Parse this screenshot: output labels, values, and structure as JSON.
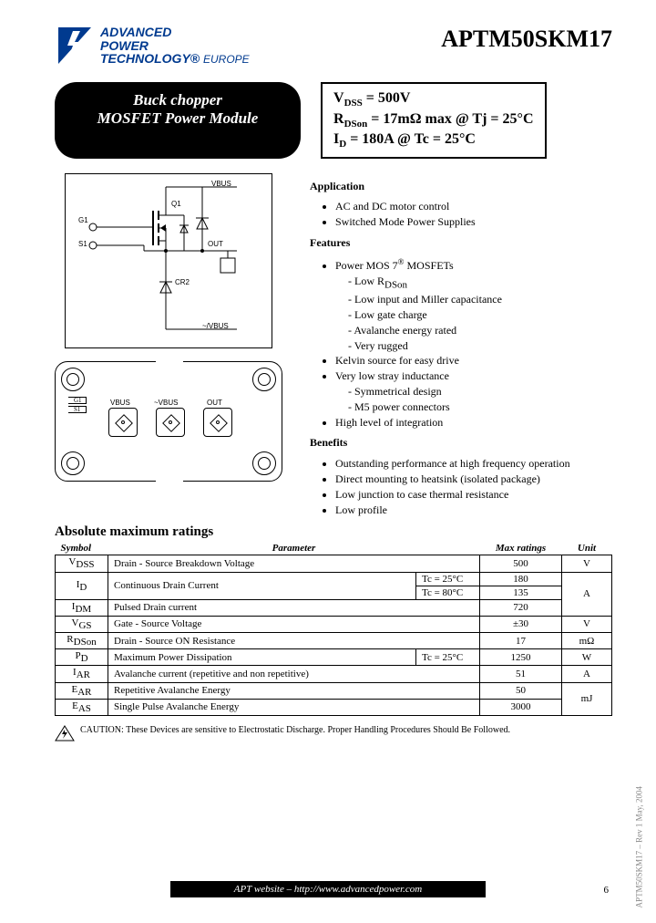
{
  "header": {
    "logo_lines": [
      "ADVANCED",
      "POWER",
      "TECHNOLOGY®"
    ],
    "logo_suffix": "EUROPE",
    "part_number": "APTM50SKM17"
  },
  "title_badge": {
    "line1": "Buck chopper",
    "line2": "MOSFET Power Module"
  },
  "spec_box": {
    "line1_html": "V<sub class='sub'>DSS</sub> = 500V",
    "line2_html": "R<sub class='sub'>DSon</sub> = 17mΩ max @ Tj = 25°C",
    "line3_html": "I<sub class='sub'>D</sub> = 180A @ Tc = 25°C"
  },
  "schematic_labels": {
    "vbus": "VBUS",
    "q1": "Q1",
    "g1": "G1",
    "s1": "S1",
    "out": "OUT",
    "cr2": "CR2",
    "nvbus": "~/VBUS"
  },
  "package_labels": {
    "g1": "G1",
    "s1": "S1",
    "vbus": "VBUS",
    "nvbus": "~VBUS",
    "out": "OUT"
  },
  "sections": {
    "application": {
      "title": "Application",
      "items": [
        "AC and DC motor control",
        "Switched Mode Power Supplies"
      ]
    },
    "features": {
      "title": "Features",
      "mosfet_title_html": "Power MOS 7<span class='sup'>®</span> MOSFETs",
      "mosfet_sub": [
        "Low R",
        "Low input and Miller capacitance",
        "Low gate charge",
        "Avalanche energy rated",
        "Very rugged"
      ],
      "mosfet_sub0_suffix": "DSon",
      "others": [
        "Kelvin source for easy drive",
        "Very low stray inductance"
      ],
      "others_sub": [
        "Symmetrical design",
        "M5 power connectors"
      ],
      "last": "High level of integration"
    },
    "benefits": {
      "title": "Benefits",
      "items": [
        "Outstanding performance at high frequency operation",
        "Direct mounting to heatsink (isolated package)",
        "Low junction to case thermal resistance",
        "Low profile"
      ]
    }
  },
  "ratings": {
    "title": "Absolute maximum ratings",
    "headers": [
      "Symbol",
      "Parameter",
      "Max ratings",
      "Unit"
    ],
    "rows": [
      {
        "sym_html": "V<sub class='sub'>DSS</sub>",
        "param": "Drain - Source Breakdown Voltage",
        "cond": "",
        "max": "500",
        "unit": "V"
      },
      {
        "sym_html": "I<sub class='sub'>D</sub>",
        "param": "Continuous Drain Current",
        "cond": "Tc = 25°C",
        "max": "180",
        "unit": "A",
        "rowspan_unit": 3,
        "rowspan_sym": 2
      },
      {
        "param": "",
        "cond": "Tc = 80°C",
        "max": "135"
      },
      {
        "sym_html": "I<sub class='sub'>DM</sub>",
        "param": "Pulsed Drain current",
        "cond": "",
        "max": "720"
      },
      {
        "sym_html": "V<sub class='sub'>GS</sub>",
        "param": "Gate - Source Voltage",
        "cond": "",
        "max": "±30",
        "unit": "V"
      },
      {
        "sym_html": "R<sub class='sub'>DSon</sub>",
        "param": "Drain - Source ON Resistance",
        "cond": "",
        "max": "17",
        "unit": "mΩ"
      },
      {
        "sym_html": "P<sub class='sub'>D</sub>",
        "param": "Maximum Power Dissipation",
        "cond": "Tc = 25°C",
        "max": "1250",
        "unit": "W"
      },
      {
        "sym_html": "I<sub class='sub'>AR</sub>",
        "param": "Avalanche current (repetitive and non repetitive)",
        "cond": "",
        "max": "51",
        "unit": "A"
      },
      {
        "sym_html": "E<sub class='sub'>AR</sub>",
        "param": "Repetitive Avalanche Energy",
        "cond": "",
        "max": "50",
        "unit": "mJ",
        "rowspan_unit": 2
      },
      {
        "sym_html": "E<sub class='sub'>AS</sub>",
        "param": "Single Pulse Avalanche Energy",
        "cond": "",
        "max": "3000"
      }
    ]
  },
  "caution": "CAUTION: These Devices are sensitive to Electrostatic Discharge. Proper Handling Procedures Should Be Followed.",
  "footer": {
    "bar": "APT website – http://www.advancedpower.com",
    "page": "6",
    "side": "APTM50SKM17 – Rev 1   May, 2004"
  },
  "colors": {
    "logo_blue": "#003a8f",
    "text": "#000000",
    "bg": "#ffffff"
  }
}
